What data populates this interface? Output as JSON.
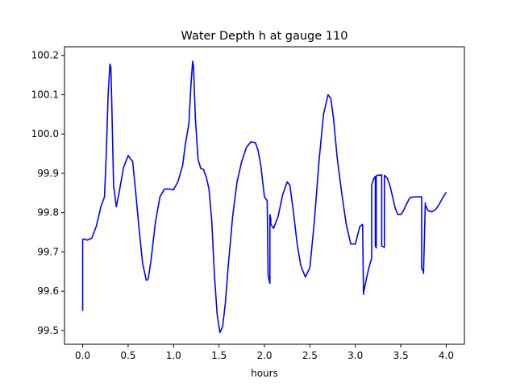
{
  "chart_data": {
    "type": "line",
    "title": "Water Depth h at gauge 110",
    "xlabel": "hours",
    "ylabel": "",
    "xlim": [
      -0.2,
      4.2
    ],
    "ylim": [
      99.465,
      100.222
    ],
    "xticks": [
      "0.0",
      "0.5",
      "1.0",
      "1.5",
      "2.0",
      "2.5",
      "3.0",
      "3.5",
      "4.0"
    ],
    "yticks": [
      "99.5",
      "99.6",
      "99.7",
      "99.8",
      "99.9",
      "100.0",
      "100.1",
      "100.2"
    ],
    "grid": false,
    "line_color": "#0000ff",
    "series": [
      {
        "name": "",
        "x": [
          0.0,
          0.0,
          0.02,
          0.05,
          0.1,
          0.15,
          0.2,
          0.24,
          0.26,
          0.28,
          0.3,
          0.31,
          0.32,
          0.34,
          0.37,
          0.4,
          0.45,
          0.5,
          0.55,
          0.58,
          0.62,
          0.66,
          0.7,
          0.72,
          0.75,
          0.8,
          0.85,
          0.9,
          0.95,
          1.0,
          1.05,
          1.1,
          1.13,
          1.15,
          1.17,
          1.19,
          1.21,
          1.22,
          1.24,
          1.27,
          1.3,
          1.33,
          1.36,
          1.39,
          1.42,
          1.45,
          1.48,
          1.51,
          1.54,
          1.57,
          1.6,
          1.65,
          1.7,
          1.75,
          1.8,
          1.85,
          1.9,
          1.93,
          1.96,
          2.0,
          2.03,
          2.04,
          2.04,
          2.06,
          2.06,
          2.07,
          2.07,
          2.1,
          2.15,
          2.2,
          2.25,
          2.28,
          2.32,
          2.36,
          2.4,
          2.45,
          2.5,
          2.55,
          2.6,
          2.65,
          2.7,
          2.73,
          2.76,
          2.8,
          2.85,
          2.9,
          2.95,
          3.0,
          3.05,
          3.08,
          3.09,
          3.09,
          3.12,
          3.15,
          3.18,
          3.18,
          3.2,
          3.22,
          3.22,
          3.23,
          3.23,
          3.24,
          3.25,
          3.26,
          3.29,
          3.29,
          3.32,
          3.32,
          3.35,
          3.38,
          3.41,
          3.44,
          3.47,
          3.5,
          3.53,
          3.56,
          3.6,
          3.65,
          3.7,
          3.73,
          3.73,
          3.75,
          3.75,
          3.77,
          3.77,
          3.8,
          3.84,
          3.88,
          3.92,
          3.96,
          4.0
        ],
        "y": [
          99.55,
          99.732,
          99.733,
          99.73,
          99.735,
          99.765,
          99.815,
          99.84,
          99.95,
          100.1,
          100.178,
          100.17,
          100.08,
          99.87,
          99.815,
          99.85,
          99.915,
          99.945,
          99.93,
          99.86,
          99.76,
          99.67,
          99.628,
          99.63,
          99.675,
          99.775,
          99.84,
          99.86,
          99.86,
          99.858,
          99.88,
          99.92,
          99.975,
          100.0,
          100.03,
          100.12,
          100.185,
          100.17,
          100.04,
          99.935,
          99.912,
          99.91,
          99.89,
          99.86,
          99.78,
          99.64,
          99.54,
          99.495,
          99.51,
          99.57,
          99.66,
          99.79,
          99.88,
          99.93,
          99.965,
          99.98,
          99.978,
          99.958,
          99.92,
          99.84,
          99.83,
          99.65,
          99.64,
          99.62,
          99.795,
          99.785,
          99.77,
          99.76,
          99.79,
          99.845,
          99.878,
          99.87,
          99.8,
          99.72,
          99.665,
          99.636,
          99.66,
          99.78,
          99.93,
          100.05,
          100.1,
          100.09,
          100.04,
          99.94,
          99.85,
          99.77,
          99.72,
          99.72,
          99.765,
          99.77,
          99.592,
          99.595,
          99.63,
          99.66,
          99.685,
          99.87,
          99.885,
          99.892,
          99.715,
          99.71,
          99.893,
          99.895,
          99.895,
          99.895,
          99.896,
          99.715,
          99.712,
          99.895,
          99.888,
          99.87,
          99.84,
          99.81,
          99.795,
          99.795,
          99.805,
          99.82,
          99.838,
          99.84,
          99.84,
          99.84,
          99.658,
          99.65,
          99.645,
          99.825,
          99.82,
          99.805,
          99.802,
          99.807,
          99.82,
          99.837,
          99.852
        ]
      }
    ]
  }
}
